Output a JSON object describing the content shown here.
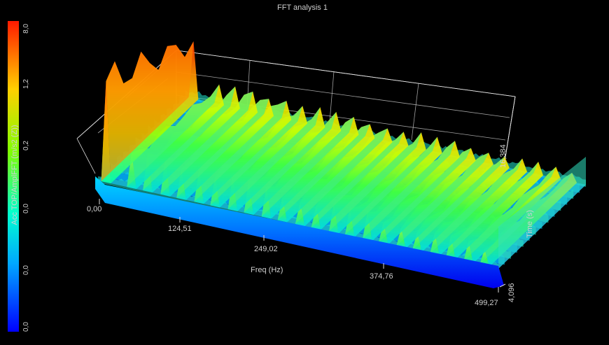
{
  "window": {
    "title": "FFT analysis 1"
  },
  "chart_data": {
    "type": "surface",
    "title": "FFT analysis 1",
    "xlabel": "Freq (Hz)",
    "ylabel": "Time (s)",
    "zlabel": "Acc TOP/AmplFFT (m/s2 (Z))",
    "x_ticks": [
      "0,00",
      "124,51",
      "249,02",
      "374,76",
      "499,27"
    ],
    "y_ticks": [
      "4,096",
      "16,384"
    ],
    "colorbar_ticks": [
      "8,0",
      "1,2",
      "0,2",
      "0,0",
      "0,0",
      "0,0"
    ],
    "x_range": [
      0,
      499.27
    ],
    "y_range": [
      4.096,
      16.384
    ],
    "peaks_freq_hz": [
      10,
      42,
      62,
      84,
      104,
      126,
      146,
      168,
      188,
      210,
      230,
      252,
      272,
      294,
      314,
      336,
      356,
      378,
      398,
      420,
      440,
      462,
      482
    ],
    "peak_relative_amplitude": [
      1.0,
      0.55,
      0.6,
      0.65,
      0.62,
      0.7,
      0.55,
      0.55,
      0.5,
      0.52,
      0.48,
      0.5,
      0.45,
      0.48,
      0.42,
      0.45,
      0.4,
      0.42,
      0.38,
      0.38,
      0.35,
      0.33,
      0.3
    ],
    "colormap": [
      "#0000ff",
      "#00a0ff",
      "#00ffc8",
      "#a0ff00",
      "#ffd000",
      "#ff2000"
    ],
    "grid": true
  }
}
